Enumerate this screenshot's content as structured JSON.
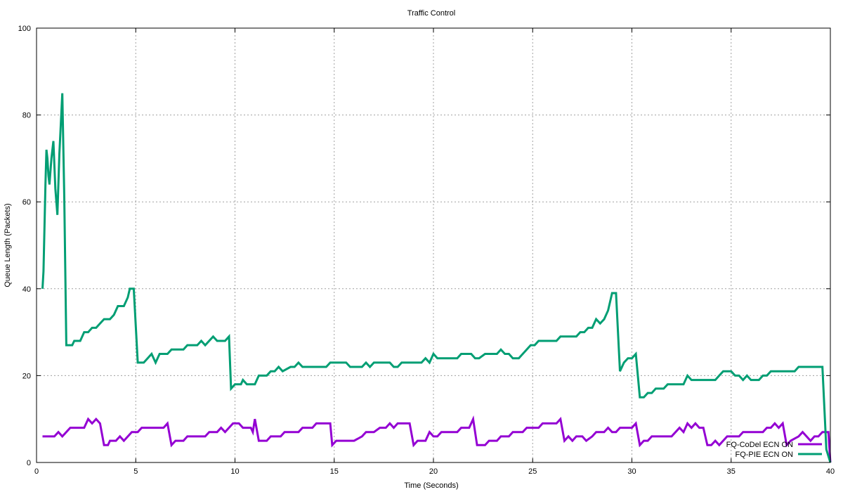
{
  "chart_data": {
    "type": "line",
    "title": "Traffic Control",
    "xlabel": "Time (Seconds)",
    "ylabel": "Queue Length (Packets)",
    "xlim": [
      0,
      40
    ],
    "ylim": [
      0,
      100
    ],
    "xticks": [
      0,
      5,
      10,
      15,
      20,
      25,
      30,
      35,
      40
    ],
    "yticks": [
      0,
      20,
      40,
      60,
      80,
      100
    ],
    "grid": true,
    "legend_position": "bottom-right",
    "series": [
      {
        "name": "FQ-CoDel ECN ON",
        "color": "#9400d3",
        "points": [
          [
            0.3,
            6
          ],
          [
            0.9,
            6
          ],
          [
            1.1,
            7
          ],
          [
            1.3,
            6
          ],
          [
            1.7,
            8
          ],
          [
            2.4,
            8
          ],
          [
            2.6,
            10
          ],
          [
            2.8,
            9
          ],
          [
            3.0,
            10
          ],
          [
            3.2,
            9
          ],
          [
            3.4,
            4
          ],
          [
            3.6,
            4
          ],
          [
            3.7,
            5
          ],
          [
            4.0,
            5
          ],
          [
            4.2,
            6
          ],
          [
            4.4,
            5
          ],
          [
            4.8,
            7
          ],
          [
            5.1,
            7
          ],
          [
            5.3,
            8
          ],
          [
            6.4,
            8
          ],
          [
            6.6,
            9
          ],
          [
            6.8,
            4
          ],
          [
            7.0,
            5
          ],
          [
            7.4,
            5
          ],
          [
            7.6,
            6
          ],
          [
            8.5,
            6
          ],
          [
            8.7,
            7
          ],
          [
            9.1,
            7
          ],
          [
            9.3,
            8
          ],
          [
            9.5,
            7
          ],
          [
            9.9,
            9
          ],
          [
            10.2,
            9
          ],
          [
            10.4,
            8
          ],
          [
            10.8,
            8
          ],
          [
            10.9,
            7
          ],
          [
            11.0,
            10
          ],
          [
            11.2,
            5
          ],
          [
            11.6,
            5
          ],
          [
            11.8,
            6
          ],
          [
            12.3,
            6
          ],
          [
            12.5,
            7
          ],
          [
            13.2,
            7
          ],
          [
            13.4,
            8
          ],
          [
            13.9,
            8
          ],
          [
            14.1,
            9
          ],
          [
            14.8,
            9
          ],
          [
            14.9,
            4
          ],
          [
            15.1,
            5
          ],
          [
            16.0,
            5
          ],
          [
            16.4,
            6
          ],
          [
            16.6,
            7
          ],
          [
            17.0,
            7
          ],
          [
            17.3,
            8
          ],
          [
            17.6,
            8
          ],
          [
            17.8,
            9
          ],
          [
            18.0,
            8
          ],
          [
            18.2,
            9
          ],
          [
            18.8,
            9
          ],
          [
            19.0,
            4
          ],
          [
            19.2,
            5
          ],
          [
            19.6,
            5
          ],
          [
            19.8,
            7
          ],
          [
            20.0,
            6
          ],
          [
            20.2,
            6
          ],
          [
            20.4,
            7
          ],
          [
            21.2,
            7
          ],
          [
            21.4,
            8
          ],
          [
            21.8,
            8
          ],
          [
            22.0,
            10
          ],
          [
            22.2,
            4
          ],
          [
            22.6,
            4
          ],
          [
            22.8,
            5
          ],
          [
            23.2,
            5
          ],
          [
            23.4,
            6
          ],
          [
            23.8,
            6
          ],
          [
            24.0,
            7
          ],
          [
            24.5,
            7
          ],
          [
            24.7,
            8
          ],
          [
            25.3,
            8
          ],
          [
            25.5,
            9
          ],
          [
            26.2,
            9
          ],
          [
            26.4,
            10
          ],
          [
            26.6,
            5
          ],
          [
            26.8,
            6
          ],
          [
            27.0,
            5
          ],
          [
            27.2,
            6
          ],
          [
            27.5,
            6
          ],
          [
            27.7,
            5
          ],
          [
            28.0,
            6
          ],
          [
            28.2,
            7
          ],
          [
            28.6,
            7
          ],
          [
            28.8,
            8
          ],
          [
            29.0,
            7
          ],
          [
            29.2,
            7
          ],
          [
            29.4,
            8
          ],
          [
            30.0,
            8
          ],
          [
            30.2,
            9
          ],
          [
            30.4,
            4
          ],
          [
            30.6,
            5
          ],
          [
            30.8,
            5
          ],
          [
            31.0,
            6
          ],
          [
            32.0,
            6
          ],
          [
            32.2,
            7
          ],
          [
            32.4,
            8
          ],
          [
            32.6,
            7
          ],
          [
            32.8,
            9
          ],
          [
            33.0,
            8
          ],
          [
            33.2,
            9
          ],
          [
            33.4,
            8
          ],
          [
            33.6,
            8
          ],
          [
            33.8,
            4
          ],
          [
            34.0,
            4
          ],
          [
            34.2,
            5
          ],
          [
            34.4,
            4
          ],
          [
            34.8,
            6
          ],
          [
            35.4,
            6
          ],
          [
            35.6,
            7
          ],
          [
            36.6,
            7
          ],
          [
            36.8,
            8
          ],
          [
            37.0,
            8
          ],
          [
            37.2,
            9
          ],
          [
            37.4,
            8
          ],
          [
            37.6,
            9
          ],
          [
            37.8,
            4
          ],
          [
            38.0,
            5
          ],
          [
            38.4,
            6
          ],
          [
            38.6,
            7
          ],
          [
            38.8,
            6
          ],
          [
            39.0,
            5
          ],
          [
            39.2,
            6
          ],
          [
            39.4,
            6
          ],
          [
            39.6,
            7
          ],
          [
            39.9,
            7
          ],
          [
            40.0,
            0
          ]
        ]
      },
      {
        "name": "FQ-PIE ECN ON",
        "color": "#009e73",
        "points": [
          [
            0.3,
            40
          ],
          [
            0.35,
            44
          ],
          [
            0.45,
            64
          ],
          [
            0.5,
            72
          ],
          [
            0.55,
            70
          ],
          [
            0.6,
            66
          ],
          [
            0.65,
            64
          ],
          [
            0.75,
            70
          ],
          [
            0.85,
            74
          ],
          [
            0.95,
            63
          ],
          [
            1.05,
            57
          ],
          [
            1.15,
            71
          ],
          [
            1.3,
            85
          ],
          [
            1.4,
            61
          ],
          [
            1.5,
            27
          ],
          [
            1.8,
            27
          ],
          [
            1.9,
            28
          ],
          [
            2.2,
            28
          ],
          [
            2.4,
            30
          ],
          [
            2.6,
            30
          ],
          [
            2.8,
            31
          ],
          [
            3.0,
            31
          ],
          [
            3.2,
            32
          ],
          [
            3.4,
            33
          ],
          [
            3.7,
            33
          ],
          [
            3.9,
            34
          ],
          [
            4.1,
            36
          ],
          [
            4.4,
            36
          ],
          [
            4.6,
            38
          ],
          [
            4.7,
            40
          ],
          [
            4.9,
            40
          ],
          [
            5.1,
            23
          ],
          [
            5.4,
            23
          ],
          [
            5.6,
            24
          ],
          [
            5.8,
            25
          ],
          [
            6.0,
            23
          ],
          [
            6.2,
            25
          ],
          [
            6.6,
            25
          ],
          [
            6.8,
            26
          ],
          [
            7.4,
            26
          ],
          [
            7.6,
            27
          ],
          [
            8.1,
            27
          ],
          [
            8.3,
            28
          ],
          [
            8.5,
            27
          ],
          [
            8.9,
            29
          ],
          [
            9.1,
            28
          ],
          [
            9.5,
            28
          ],
          [
            9.7,
            29
          ],
          [
            9.8,
            17
          ],
          [
            10.0,
            18
          ],
          [
            10.3,
            18
          ],
          [
            10.4,
            19
          ],
          [
            10.6,
            18
          ],
          [
            11.0,
            18
          ],
          [
            11.2,
            20
          ],
          [
            11.6,
            20
          ],
          [
            11.8,
            21
          ],
          [
            12.0,
            21
          ],
          [
            12.2,
            22
          ],
          [
            12.4,
            21
          ],
          [
            12.8,
            22
          ],
          [
            13.0,
            22
          ],
          [
            13.2,
            23
          ],
          [
            13.4,
            22
          ],
          [
            14.6,
            22
          ],
          [
            14.8,
            23
          ],
          [
            15.6,
            23
          ],
          [
            15.8,
            22
          ],
          [
            16.4,
            22
          ],
          [
            16.6,
            23
          ],
          [
            16.8,
            22
          ],
          [
            17.0,
            23
          ],
          [
            17.8,
            23
          ],
          [
            18.0,
            22
          ],
          [
            18.2,
            22
          ],
          [
            18.4,
            23
          ],
          [
            19.4,
            23
          ],
          [
            19.6,
            24
          ],
          [
            19.8,
            23
          ],
          [
            20.0,
            25
          ],
          [
            20.2,
            24
          ],
          [
            21.2,
            24
          ],
          [
            21.4,
            25
          ],
          [
            21.9,
            25
          ],
          [
            22.1,
            24
          ],
          [
            22.3,
            24
          ],
          [
            22.6,
            25
          ],
          [
            23.2,
            25
          ],
          [
            23.4,
            26
          ],
          [
            23.6,
            25
          ],
          [
            23.8,
            25
          ],
          [
            24.0,
            24
          ],
          [
            24.3,
            24
          ],
          [
            24.9,
            27
          ],
          [
            25.1,
            27
          ],
          [
            25.3,
            28
          ],
          [
            26.2,
            28
          ],
          [
            26.4,
            29
          ],
          [
            27.2,
            29
          ],
          [
            27.4,
            30
          ],
          [
            27.6,
            30
          ],
          [
            27.8,
            31
          ],
          [
            28.0,
            31
          ],
          [
            28.2,
            33
          ],
          [
            28.4,
            32
          ],
          [
            28.6,
            33
          ],
          [
            28.8,
            35
          ],
          [
            29.0,
            39
          ],
          [
            29.2,
            39
          ],
          [
            29.4,
            21
          ],
          [
            29.6,
            23
          ],
          [
            29.8,
            24
          ],
          [
            30.0,
            24
          ],
          [
            30.2,
            25
          ],
          [
            30.4,
            15
          ],
          [
            30.6,
            15
          ],
          [
            30.8,
            16
          ],
          [
            31.0,
            16
          ],
          [
            31.2,
            17
          ],
          [
            31.6,
            17
          ],
          [
            31.8,
            18
          ],
          [
            32.6,
            18
          ],
          [
            32.8,
            20
          ],
          [
            33.0,
            19
          ],
          [
            34.2,
            19
          ],
          [
            34.4,
            20
          ],
          [
            34.6,
            21
          ],
          [
            35.0,
            21
          ],
          [
            35.2,
            20
          ],
          [
            35.4,
            20
          ],
          [
            35.6,
            19
          ],
          [
            35.8,
            20
          ],
          [
            36.0,
            19
          ],
          [
            36.4,
            19
          ],
          [
            36.6,
            20
          ],
          [
            36.8,
            20
          ],
          [
            37.0,
            21
          ],
          [
            38.2,
            21
          ],
          [
            38.4,
            22
          ],
          [
            39.6,
            22
          ],
          [
            39.8,
            3
          ],
          [
            40.0,
            0
          ]
        ]
      }
    ]
  }
}
